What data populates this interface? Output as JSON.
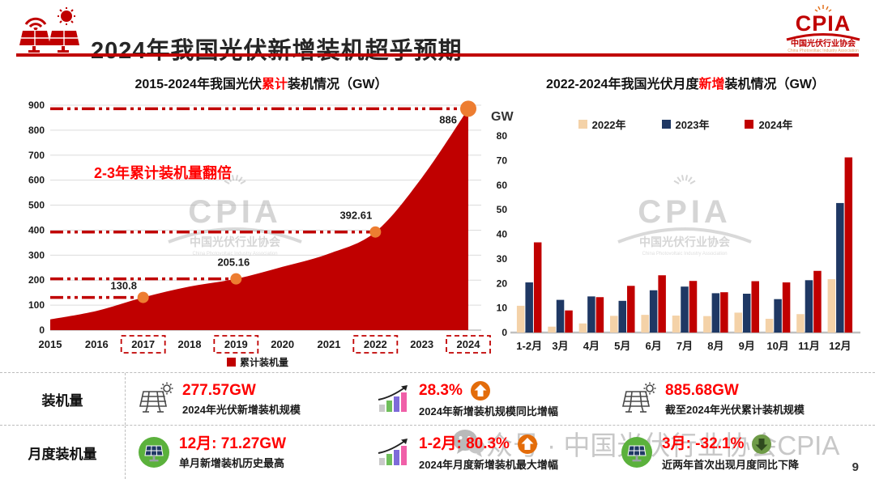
{
  "header": {
    "title": "2024年我国光伏新增装机超乎预期"
  },
  "logo": {
    "name": "CPIA",
    "org_cn": "中国光伏行业协会",
    "org_en": "China Photovoltaic Industry Association"
  },
  "chart_data": [
    {
      "type": "area",
      "title": "2015-2024年我国光伏累计装机情况（GW）",
      "title_pre": "2015-2024年我国光伏",
      "title_highlight": "累计",
      "title_post": "装机情况（GW）",
      "categories": [
        "2015",
        "2016",
        "2017",
        "2018",
        "2019",
        "2020",
        "2021",
        "2022",
        "2023",
        "2024"
      ],
      "values": [
        43,
        77,
        130.8,
        174.5,
        205.16,
        253.4,
        306,
        392.61,
        609.5,
        886
      ],
      "ylim": [
        0,
        900
      ],
      "ytick": 100,
      "series_name": "累计装机量",
      "annotation": "2-3年累计装机量翻倍",
      "labeled_points": [
        {
          "category": "2017",
          "value": 130.8,
          "label": "130.8"
        },
        {
          "category": "2019",
          "value": 205.16,
          "label": "205.16"
        },
        {
          "category": "2022",
          "value": 392.61,
          "label": "392.61"
        },
        {
          "category": "2024",
          "value": 886,
          "label": "886"
        }
      ],
      "boxed_categories": [
        "2017",
        "2019",
        "2022",
        "2024"
      ],
      "fill_color": "#C00000",
      "marker_color": "#ED7D31",
      "grid": true,
      "legend_position": "bottom"
    },
    {
      "type": "bar",
      "title": "2022-2024年我国光伏月度新增装机情况（GW）",
      "title_pre": "2022-2024年我国光伏月度",
      "title_highlight": "新增",
      "title_post": "装机情况（GW）",
      "unit": "GW",
      "categories": [
        "1-2月",
        "3月",
        "4月",
        "5月",
        "6月",
        "7月",
        "8月",
        "9月",
        "10月",
        "11月",
        "12月"
      ],
      "series": [
        {
          "name": "2022年",
          "color": "#F4D2A8",
          "values": [
            10.9,
            2.4,
            3.7,
            6.8,
            7.2,
            6.9,
            6.7,
            8.1,
            5.6,
            7.5,
            21.7
          ]
        },
        {
          "name": "2023年",
          "color": "#1F3864",
          "values": [
            20.4,
            13.3,
            14.7,
            12.9,
            17.2,
            18.7,
            16.0,
            15.8,
            13.6,
            21.3,
            52.7
          ]
        },
        {
          "name": "2024年",
          "color": "#C00000",
          "values": [
            36.7,
            9.0,
            14.4,
            19.0,
            23.3,
            21.0,
            16.4,
            20.9,
            20.4,
            25.1,
            71.27
          ]
        }
      ],
      "ylim": [
        0,
        80
      ],
      "ytick": 10,
      "grid": false,
      "legend_position": "top"
    }
  ],
  "stats": {
    "rows": [
      {
        "label": "装机量",
        "items": [
          {
            "icon": "solar-panel",
            "value": "277.57GW",
            "caption": "2024年光伏新增装机规模"
          },
          {
            "icon": "growth-chart",
            "value": "28.3%",
            "badge": "up",
            "caption": "2024年新增装机规模同比增幅"
          },
          {
            "icon": "solar-panel",
            "value": "885.68GW",
            "caption": "截至2024年光伏累计装机规模"
          }
        ]
      },
      {
        "label": "月度装机量",
        "items": [
          {
            "icon": "solar-panel-green",
            "value": "12月: 71.27GW",
            "caption": "单月新增装机历史最高"
          },
          {
            "icon": "growth-chart",
            "value": "1-2月: 80.3%",
            "badge": "up",
            "caption": "2024年月度新增装机最大增幅"
          },
          {
            "icon": "solar-panel-green",
            "value": "3月: -32.1%",
            "badge": "down",
            "caption": "近两年首次出现月度同比下降"
          }
        ]
      }
    ]
  },
  "watermarks": {
    "chart_logo": {
      "cpia": "CPIA",
      "cn": "中国光伏行业协会",
      "en": "China Photovoltaic Industry Association"
    },
    "bottom_text": "众号 · 中国光伏行业协会CPIA"
  },
  "page_number": "9",
  "colors": {
    "primary_red": "#C00000",
    "bright_red": "#FF0000",
    "orange_marker": "#ED7D31",
    "tan_2022": "#F4D2A8",
    "navy_2023": "#1F3864",
    "badge_orange": "#E36C0A",
    "badge_green": "#6E9B47"
  }
}
